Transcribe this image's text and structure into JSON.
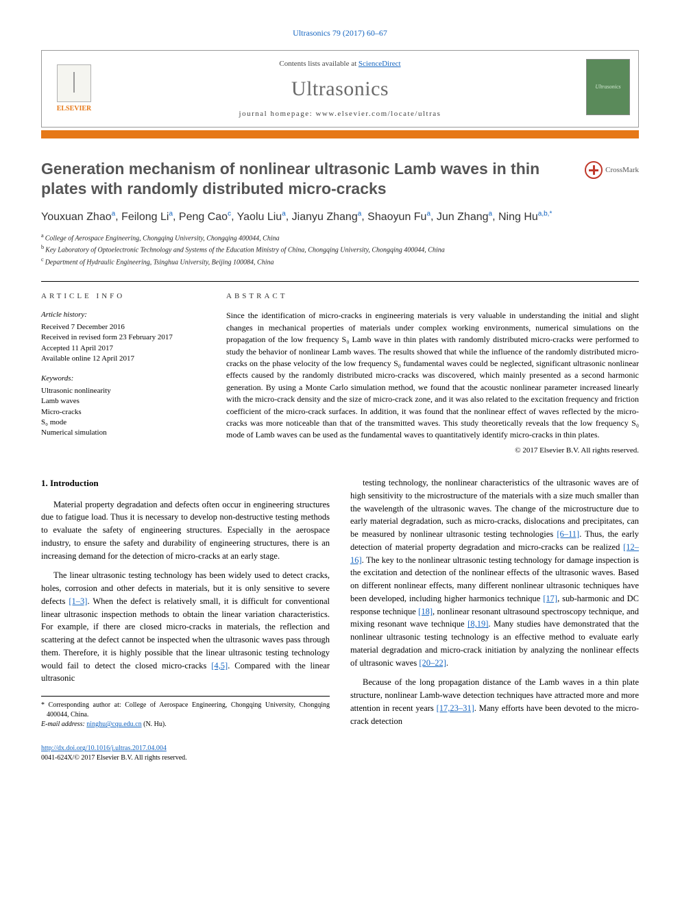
{
  "journal_reference": "Ultrasonics 79 (2017) 60–67",
  "header": {
    "contents_text": "Contents lists available at ",
    "contents_link": "ScienceDirect",
    "journal_name": "Ultrasonics",
    "homepage_label": "journal homepage: ",
    "homepage_url": "www.elsevier.com/locate/ultras",
    "publisher_logo_text": "ELSEVIER",
    "cover_text": "Ultrasonics"
  },
  "colors": {
    "accent_orange": "#e67817",
    "link_blue": "#1565c0",
    "title_gray": "#555555",
    "text": "#000000",
    "cover_green": "#5a8a5a"
  },
  "article": {
    "title": "Generation mechanism of nonlinear ultrasonic Lamb waves in thin plates with randomly distributed micro-cracks",
    "crossmark_label": "CrossMark",
    "authors_html": "Youxuan Zhao ᵃ, Feilong Li ᵃ, Peng Cao ᶜ, Yaolu Liu ᵃ, Jianyu Zhang ᵃ, Shaoyun Fu ᵃ, Jun Zhang ᵃ, Ning Hu ᵃ·ᵇ·*",
    "authors": [
      {
        "name": "Youxuan Zhao",
        "aff": "a"
      },
      {
        "name": "Feilong Li",
        "aff": "a"
      },
      {
        "name": "Peng Cao",
        "aff": "c"
      },
      {
        "name": "Yaolu Liu",
        "aff": "a"
      },
      {
        "name": "Jianyu Zhang",
        "aff": "a"
      },
      {
        "name": "Shaoyun Fu",
        "aff": "a"
      },
      {
        "name": "Jun Zhang",
        "aff": "a"
      },
      {
        "name": "Ning Hu",
        "aff": "a,b,*"
      }
    ],
    "affiliations": [
      {
        "key": "a",
        "text": "College of Aerospace Engineering, Chongqing University, Chongqing 400044, China"
      },
      {
        "key": "b",
        "text": "Key Laboratory of Optoelectronic Technology and Systems of the Education Ministry of China, Chongqing University, Chongqing 400044, China"
      },
      {
        "key": "c",
        "text": "Department of Hydraulic Engineering, Tsinghua University, Beijing 100084, China"
      }
    ]
  },
  "info": {
    "article_info_heading": "ARTICLE INFO",
    "history_label": "Article history:",
    "history": [
      "Received 7 December 2016",
      "Received in revised form 23 February 2017",
      "Accepted 11 April 2017",
      "Available online 12 April 2017"
    ],
    "keywords_label": "Keywords:",
    "keywords": [
      "Ultrasonic nonlinearity",
      "Lamb waves",
      "Micro-cracks",
      "S₀ mode",
      "Numerical simulation"
    ],
    "abstract_heading": "ABSTRACT",
    "abstract_text": "Since the identification of micro-cracks in engineering materials is very valuable in understanding the initial and slight changes in mechanical properties of materials under complex working environments, numerical simulations on the propagation of the low frequency S₀ Lamb wave in thin plates with randomly distributed micro-cracks were performed to study the behavior of nonlinear Lamb waves. The results showed that while the influence of the randomly distributed micro-cracks on the phase velocity of the low frequency S₀ fundamental waves could be neglected, significant ultrasonic nonlinear effects caused by the randomly distributed micro-cracks was discovered, which mainly presented as a second harmonic generation. By using a Monte Carlo simulation method, we found that the acoustic nonlinear parameter increased linearly with the micro-crack density and the size of micro-crack zone, and it was also related to the excitation frequency and friction coefficient of the micro-crack surfaces. In addition, it was found that the nonlinear effect of waves reflected by the micro-cracks was more noticeable than that of the transmitted waves. This study theoretically reveals that the low frequency S₀ mode of Lamb waves can be used as the fundamental waves to quantitatively identify micro-cracks in thin plates.",
    "copyright": "© 2017 Elsevier B.V. All rights reserved."
  },
  "body": {
    "intro_heading": "1. Introduction",
    "col1_p1": "Material property degradation and defects often occur in engineering structures due to fatigue load. Thus it is necessary to develop non-destructive testing methods to evaluate the safety of engineering structures. Especially in the aerospace industry, to ensure the safety and durability of engineering structures, there is an increasing demand for the detection of micro-cracks at an early stage.",
    "col1_p2_a": "The linear ultrasonic testing technology has been widely used to detect cracks, holes, corrosion and other defects in materials, but it is only sensitive to severe defects ",
    "col1_p2_ref1": "[1–3]",
    "col1_p2_b": ". When the defect is relatively small, it is difficult for conventional linear ultrasonic inspection methods to obtain the linear variation characteristics. For example, if there are closed micro-cracks in materials, the reflection and scattering at the defect cannot be inspected when the ultrasonic waves pass through them. Therefore, it is highly possible that the linear ultrasonic testing technology would fail to detect the closed micro-cracks ",
    "col1_p2_ref2": "[4,5]",
    "col1_p2_c": ". Compared with the linear ultrasonic",
    "col2_p1_a": "testing technology, the nonlinear characteristics of the ultrasonic waves are of high sensitivity to the microstructure of the materials with a size much smaller than the wavelength of the ultrasonic waves. The change of the microstructure due to early material degradation, such as micro-cracks, dislocations and precipitates, can be measured by nonlinear ultrasonic testing technologies ",
    "col2_p1_ref1": "[6–11]",
    "col2_p1_b": ". Thus, the early detection of material property degradation and micro-cracks can be realized ",
    "col2_p1_ref2": "[12–16]",
    "col2_p1_c": ". The key to the nonlinear ultrasonic testing technology for damage inspection is the excitation and detection of the nonlinear effects of the ultrasonic waves. Based on different nonlinear effects, many different nonlinear ultrasonic techniques have been developed, including higher harmonics technique ",
    "col2_p1_ref3": "[17]",
    "col2_p1_d": ", sub-harmonic and DC response technique ",
    "col2_p1_ref4": "[18]",
    "col2_p1_e": ", nonlinear resonant ultrasound spectroscopy technique, and mixing resonant wave technique ",
    "col2_p1_ref5": "[8,19]",
    "col2_p1_f": ". Many studies have demonstrated that the nonlinear ultrasonic testing technology is an effective method to evaluate early material degradation and micro-crack initiation by analyzing the nonlinear effects of ultrasonic waves ",
    "col2_p1_ref6": "[20–22]",
    "col2_p1_g": ".",
    "col2_p2_a": "Because of the long propagation distance of the Lamb waves in a thin plate structure, nonlinear Lamb-wave detection techniques have attracted more and more attention in recent years ",
    "col2_p2_ref1": "[17,23–31]",
    "col2_p2_b": ". Many efforts have been devoted to the micro-crack detection"
  },
  "footer": {
    "corresponding": "* Corresponding author at: College of Aerospace Engineering, Chongqing University, Chongqing 400044, China.",
    "email_label": "E-mail address: ",
    "email": "ninghu@cqu.edu.cn",
    "email_name": " (N. Hu).",
    "doi": "http://dx.doi.org/10.1016/j.ultras.2017.04.004",
    "issn_line": "0041-624X/© 2017 Elsevier B.V. All rights reserved."
  }
}
